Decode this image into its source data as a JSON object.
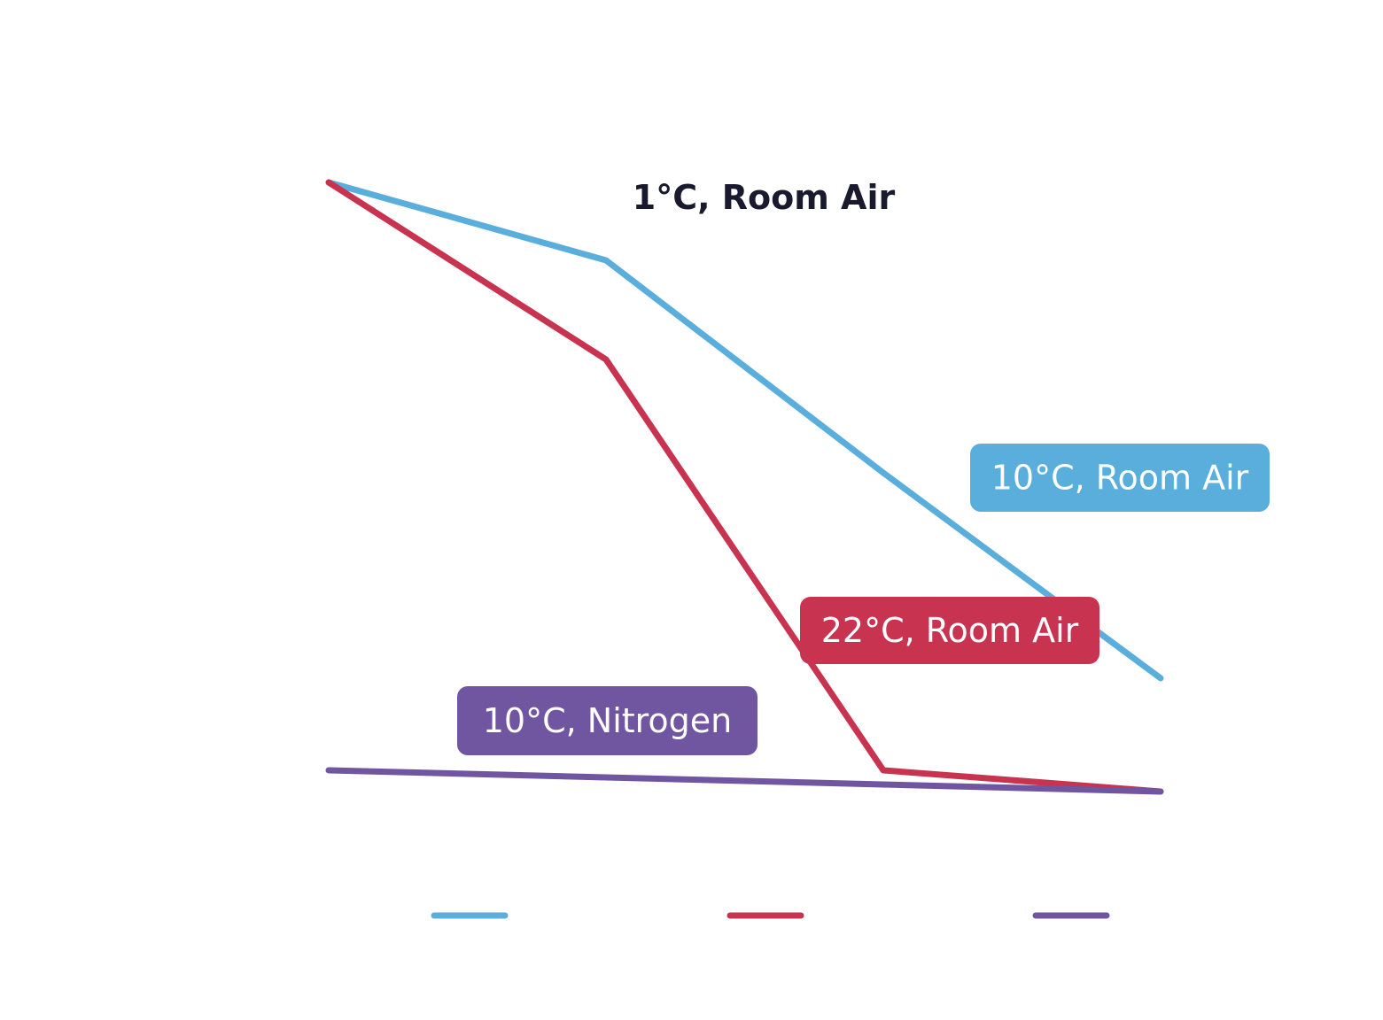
{
  "chart_data": {
    "type": "line",
    "x": [
      0,
      1,
      2,
      3
    ],
    "series": [
      {
        "name": "10°C, Room Air",
        "color": "#5aaedb",
        "values": [
          9.3,
          8.2,
          5.2,
          2.3
        ]
      },
      {
        "name": "22°C, Room Air",
        "color": "#c8334f",
        "values": [
          9.3,
          6.8,
          1.0,
          0.7
        ]
      },
      {
        "name": "10°C, Nitrogen",
        "color": "#7055a0",
        "values": [
          1.0,
          0.9,
          0.8,
          0.7
        ]
      }
    ],
    "annotation": "1°C, Room Air",
    "ylim": [
      0,
      10
    ],
    "grid": false,
    "legend": "bottom"
  }
}
